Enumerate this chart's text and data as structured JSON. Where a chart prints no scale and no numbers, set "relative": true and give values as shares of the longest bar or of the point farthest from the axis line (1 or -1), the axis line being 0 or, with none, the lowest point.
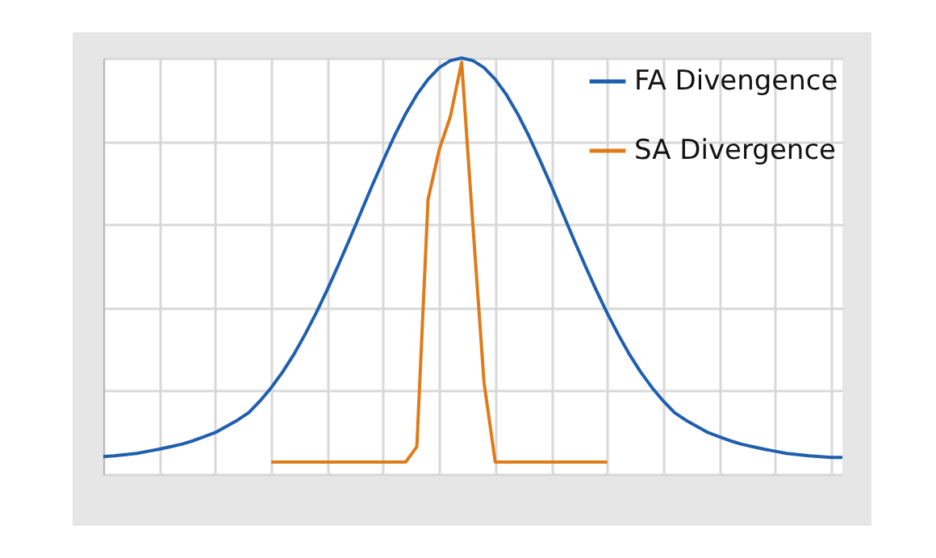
{
  "chart_data": {
    "type": "line",
    "relative": true,
    "grid": true,
    "legend": "top right",
    "categories": [
      null,
      null,
      null,
      null,
      null,
      null,
      null,
      null,
      null,
      null,
      null,
      null,
      null,
      null,
      null,
      null,
      null,
      null,
      null,
      null,
      null,
      null,
      null,
      null,
      null,
      null,
      null,
      null,
      null,
      null,
      null,
      null,
      null,
      null,
      null,
      null,
      null,
      null,
      null,
      null,
      null,
      null,
      null,
      null,
      null,
      null,
      null,
      null,
      null,
      null,
      null,
      null,
      null,
      null,
      null,
      null,
      null,
      null,
      null,
      null,
      null,
      null,
      null,
      null,
      null,
      null,
      null
    ],
    "series": [
      {
        "name": "FA Divengence",
        "color": "#1f5fae",
        "values": [
          0.042,
          0.044,
          0.047,
          0.05,
          0.055,
          0.06,
          0.066,
          0.072,
          0.08,
          0.09,
          0.1,
          0.115,
          0.13,
          0.148,
          0.176,
          0.208,
          0.245,
          0.287,
          0.335,
          0.387,
          0.443,
          0.503,
          0.565,
          0.629,
          0.693,
          0.754,
          0.813,
          0.866,
          0.912,
          0.949,
          0.977,
          0.994,
          1.0,
          0.994,
          0.977,
          0.949,
          0.912,
          0.866,
          0.813,
          0.754,
          0.693,
          0.629,
          0.565,
          0.503,
          0.443,
          0.387,
          0.335,
          0.287,
          0.245,
          0.208,
          0.176,
          0.148,
          0.13,
          0.115,
          0.1,
          0.09,
          0.08,
          0.072,
          0.066,
          0.06,
          0.055,
          0.05,
          0.047,
          0.044,
          0.042,
          0.04,
          0.04
        ]
      },
      {
        "name": "SA Divergence",
        "color": "#e07b1a",
        "values": [
          null,
          null,
          null,
          null,
          null,
          null,
          null,
          null,
          null,
          null,
          null,
          null,
          null,
          null,
          null,
          0.029,
          0.029,
          0.029,
          0.029,
          0.029,
          0.029,
          0.029,
          0.029,
          0.029,
          0.029,
          0.029,
          0.029,
          0.029,
          0.066,
          0.66,
          0.78,
          0.86,
          0.99,
          0.6,
          0.22,
          0.029,
          0.029,
          0.029,
          0.029,
          0.029,
          0.029,
          0.029,
          0.029,
          0.029,
          0.029,
          0.029,
          null,
          null,
          null,
          null,
          null,
          null,
          null,
          null,
          null,
          null,
          null,
          null,
          null,
          null,
          null,
          null,
          null,
          null,
          null,
          null,
          null
        ]
      }
    ]
  }
}
